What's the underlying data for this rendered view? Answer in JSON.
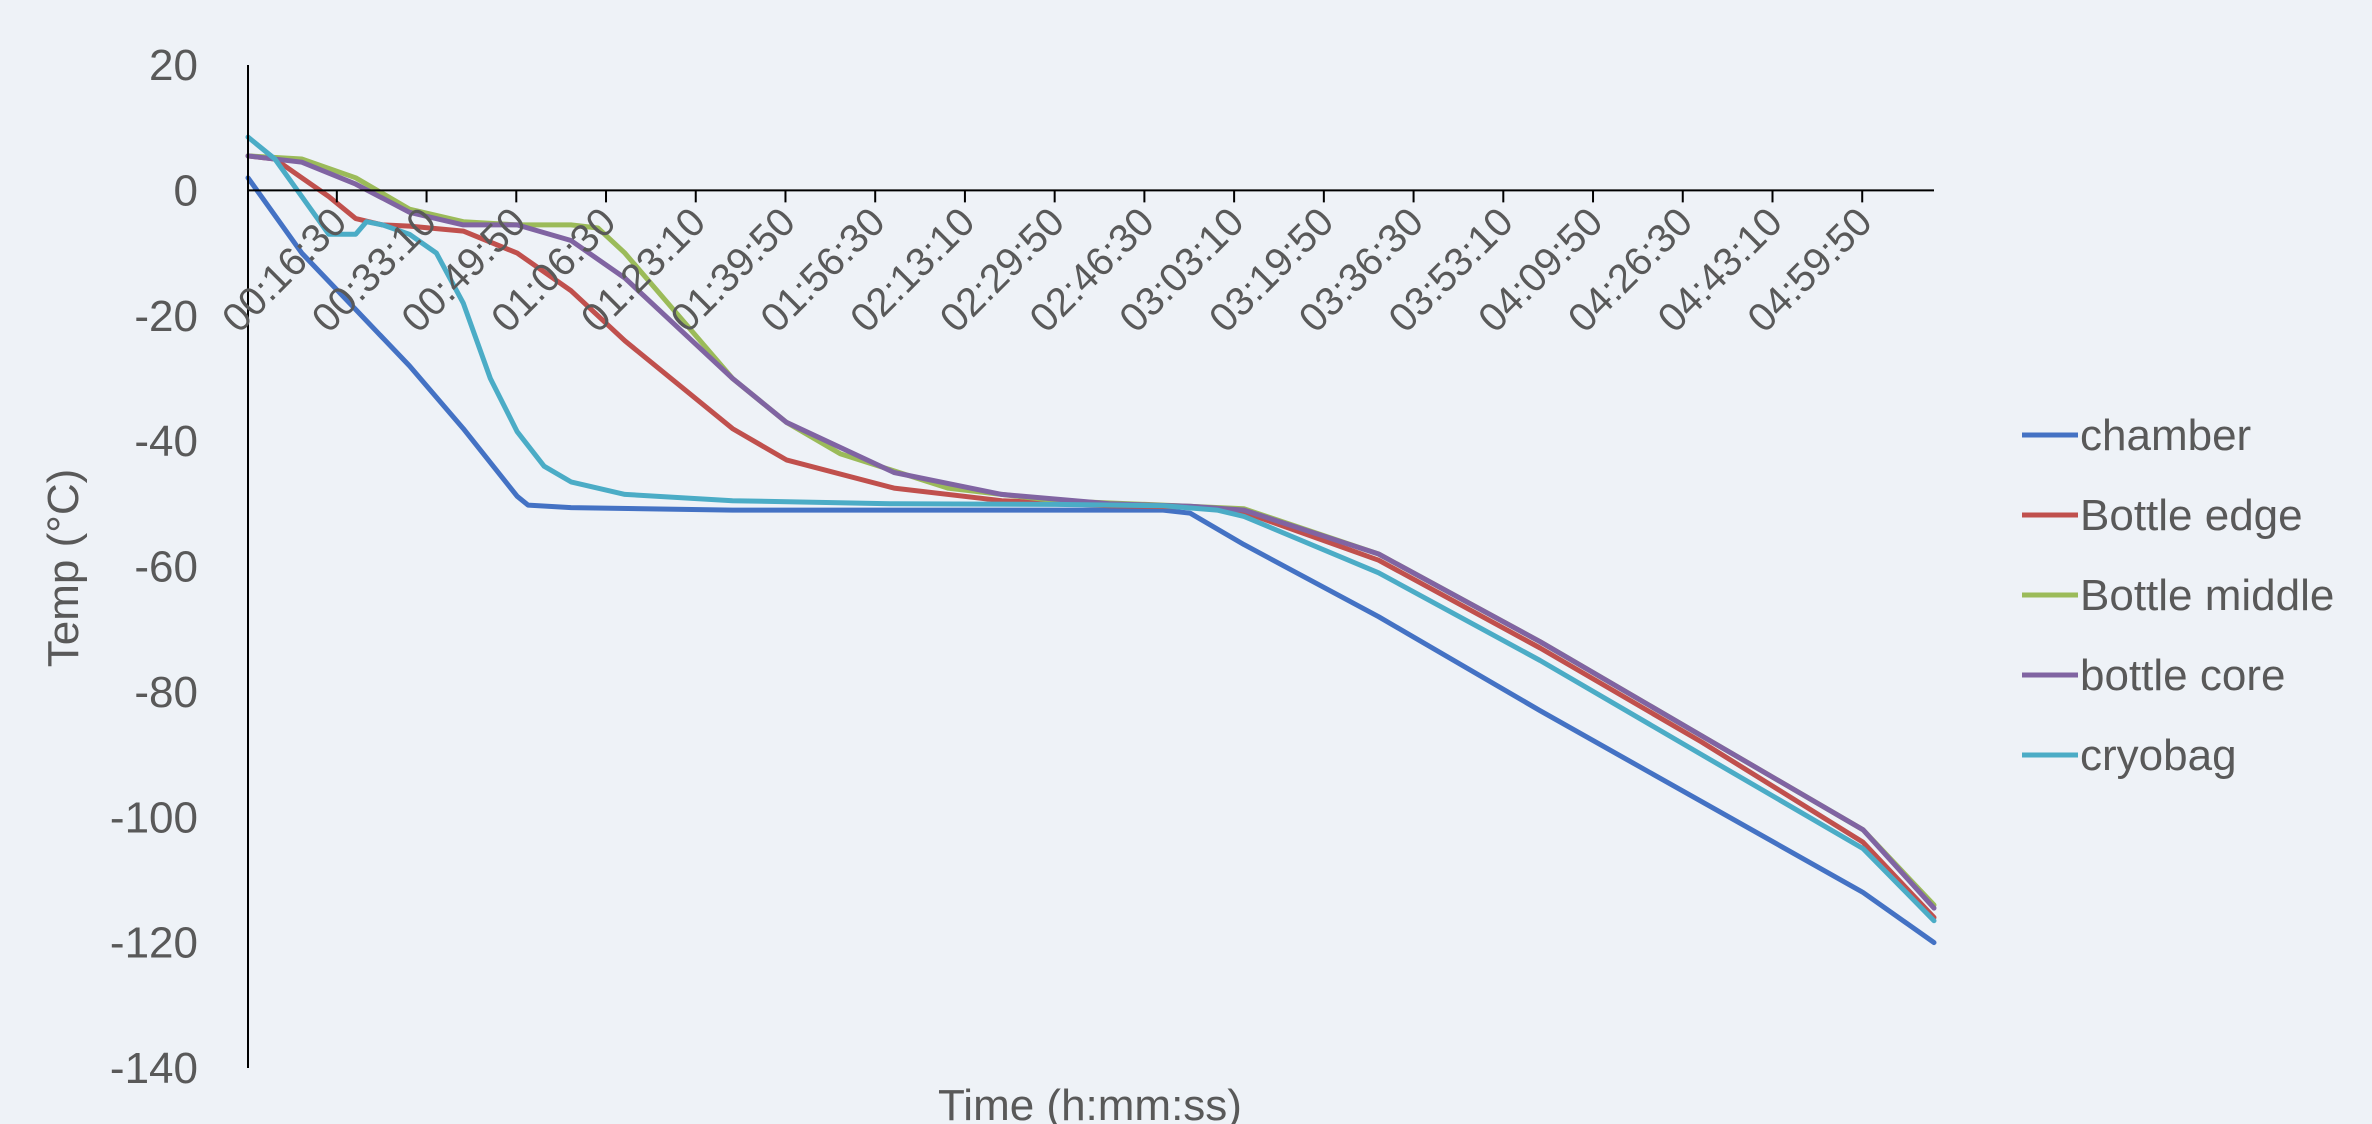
{
  "chart_data": {
    "type": "line",
    "title": "",
    "xlabel": "Time (h:mm:ss)",
    "ylabel": "Temp (°C)",
    "ylim": [
      -140,
      20
    ],
    "yticks": [
      20,
      0,
      -20,
      -40,
      -60,
      -80,
      -100,
      -120,
      -140
    ],
    "xlim": [
      "0:00:00",
      "5:13:10"
    ],
    "xtick_labels": [
      "00:16:30",
      "00:33:10",
      "00:49:50",
      "01:06:30",
      "01:23:10",
      "01:39:50",
      "01:56:30",
      "02:13:10",
      "02:29:50",
      "02:46:30",
      "03:03:10",
      "03:19:50",
      "03:36:30",
      "03:53:10",
      "04:09:50",
      "04:26:30",
      "04:43:10",
      "04:59:50"
    ],
    "grid": false,
    "legend_position": "right",
    "series": [
      {
        "name": "chamber",
        "color": "#4472c4",
        "x": [
          "0:00:00",
          "0:10:00",
          "0:20:00",
          "0:30:00",
          "0:40:00",
          "0:50:00",
          "0:52:00",
          "1:00:00",
          "1:30:00",
          "2:00:00",
          "2:30:00",
          "2:50:00",
          "2:55:00",
          "3:05:00",
          "3:30:00",
          "4:00:00",
          "4:30:00",
          "5:00:00",
          "5:13:10"
        ],
        "y": [
          2,
          -10,
          -19,
          -28,
          -38,
          -48.8,
          -50.2,
          -50.6,
          -51,
          -51,
          -51,
          -51,
          -51.5,
          -56.5,
          -68,
          -83,
          -97.5,
          -112,
          -120
        ]
      },
      {
        "name": "Bottle edge",
        "color": "#c0504d",
        "x": [
          "0:00:00",
          "0:05:00",
          "0:10:00",
          "0:15:00",
          "0:20:00",
          "0:25:00",
          "0:30:00",
          "0:40:00",
          "0:50:00",
          "1:00:00",
          "1:10:00",
          "1:20:00",
          "1:30:00",
          "1:40:00",
          "2:00:00",
          "2:20:00",
          "2:40:00",
          "2:55:00",
          "3:05:00",
          "3:30:00",
          "4:00:00",
          "4:30:00",
          "5:00:00",
          "5:13:10"
        ],
        "y": [
          5.5,
          5,
          2,
          -1,
          -4.5,
          -5.5,
          -5.7,
          -6.5,
          -10,
          -16,
          -24,
          -31,
          -38,
          -43,
          -47.5,
          -49.5,
          -50.3,
          -50.5,
          -51.3,
          -59,
          -73,
          -88,
          -104,
          -116
        ]
      },
      {
        "name": "Bottle middle",
        "color": "#9bbb59",
        "x": [
          "0:00:00",
          "0:10:00",
          "0:20:00",
          "0:30:00",
          "0:40:00",
          "0:50:00",
          "1:00:00",
          "1:05:00",
          "1:10:00",
          "1:20:00",
          "1:30:00",
          "1:40:00",
          "1:50:00",
          "2:10:00",
          "2:30:00",
          "2:50:00",
          "3:05:00",
          "3:30:00",
          "4:00:00",
          "4:30:00",
          "5:00:00",
          "5:13:10"
        ],
        "y": [
          5.5,
          5,
          2,
          -3,
          -5,
          -5.5,
          -5.5,
          -6,
          -10,
          -20,
          -30,
          -37,
          -42,
          -47.5,
          -49.5,
          -50.2,
          -50.8,
          -58,
          -72,
          -87,
          -102,
          -114
        ]
      },
      {
        "name": "bottle core",
        "color": "#8064a2",
        "x": [
          "0:00:00",
          "0:10:00",
          "0:20:00",
          "0:30:00",
          "0:40:00",
          "0:50:00",
          "1:00:00",
          "1:10:00",
          "1:20:00",
          "1:30:00",
          "1:40:00",
          "2:00:00",
          "2:20:00",
          "2:40:00",
          "2:55:00",
          "3:05:00",
          "3:30:00",
          "4:00:00",
          "4:30:00",
          "5:00:00",
          "5:13:10"
        ],
        "y": [
          5.5,
          4.5,
          1,
          -3.5,
          -5.5,
          -5.5,
          -8,
          -14,
          -22,
          -30,
          -37,
          -45,
          -48.5,
          -50,
          -50.4,
          -51,
          -58,
          -72,
          -87,
          -102,
          -114.5
        ]
      },
      {
        "name": "cryobag",
        "color": "#4bacc6",
        "x": [
          "0:00:00",
          "0:05:00",
          "0:10:00",
          "0:15:00",
          "0:20:00",
          "0:22:00",
          "0:25:00",
          "0:30:00",
          "0:35:00",
          "0:40:00",
          "0:45:00",
          "0:50:00",
          "0:55:00",
          "1:00:00",
          "1:10:00",
          "1:30:00",
          "2:00:00",
          "2:30:00",
          "2:50:00",
          "3:00:00",
          "3:05:00",
          "3:30:00",
          "4:00:00",
          "4:30:00",
          "5:00:00",
          "5:13:10"
        ],
        "y": [
          8.5,
          5,
          -1,
          -7,
          -7,
          -5,
          -5.5,
          -7,
          -10,
          -18,
          -30,
          -38.5,
          -44,
          -46.5,
          -48.5,
          -49.5,
          -50,
          -50.1,
          -50.3,
          -51,
          -52,
          -61,
          -75,
          -90,
          -105,
          -116.5
        ]
      }
    ]
  }
}
